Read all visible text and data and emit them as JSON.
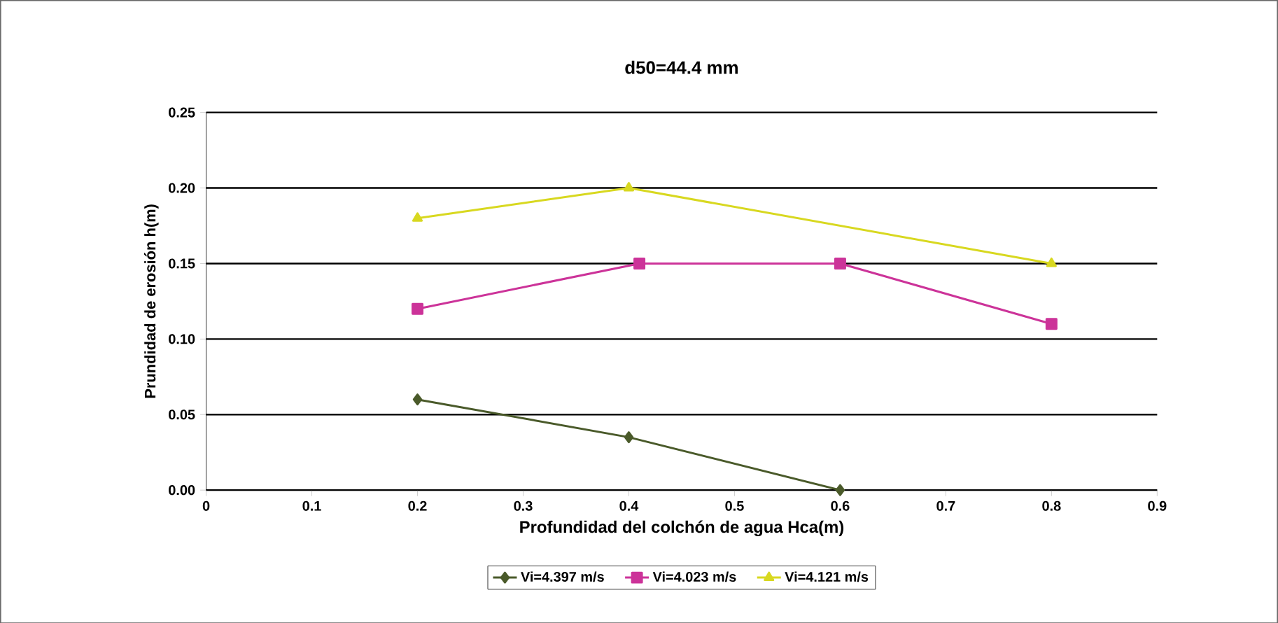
{
  "chart_data": {
    "type": "line",
    "title": "d50=44.4 mm",
    "xlabel": "Profundidad del colchón de agua Hca(m)",
    "ylabel": "Prundidad de erosión h(m)",
    "xlim": [
      0,
      0.9
    ],
    "xticks": [
      0,
      0.1,
      0.2,
      0.3,
      0.4,
      0.5,
      0.6,
      0.7,
      0.8,
      0.9
    ],
    "ylim": [
      0,
      0.25
    ],
    "yticks": [
      {
        "value": 0,
        "label": "0.00"
      },
      {
        "value": 0.05,
        "label": "0.05"
      },
      {
        "value": 0.1,
        "label": "0.10"
      },
      {
        "value": 0.15,
        "label": "0.15"
      },
      {
        "value": 0.2,
        "label": "0.20"
      },
      {
        "value": 0.25,
        "label": "0.25"
      }
    ],
    "grid": "y",
    "legend": "bottom",
    "series": [
      {
        "name": "Vi=4.397 m/s",
        "color": "#4a5a2a",
        "marker": "diamond",
        "x": [
          0.2,
          0.4,
          0.6
        ],
        "values": [
          0.06,
          0.035,
          0.0
        ]
      },
      {
        "name": "Vi=4.023 m/s",
        "color": "#cc3399",
        "marker": "square",
        "x": [
          0.2,
          0.41,
          0.6,
          0.8
        ],
        "values": [
          0.12,
          0.15,
          0.15,
          0.11
        ]
      },
      {
        "name": "Vi=4.121 m/s",
        "color": "#d8d820",
        "marker": "triangle",
        "x": [
          0.2,
          0.4,
          0.8
        ],
        "values": [
          0.18,
          0.2,
          0.15
        ]
      }
    ]
  }
}
